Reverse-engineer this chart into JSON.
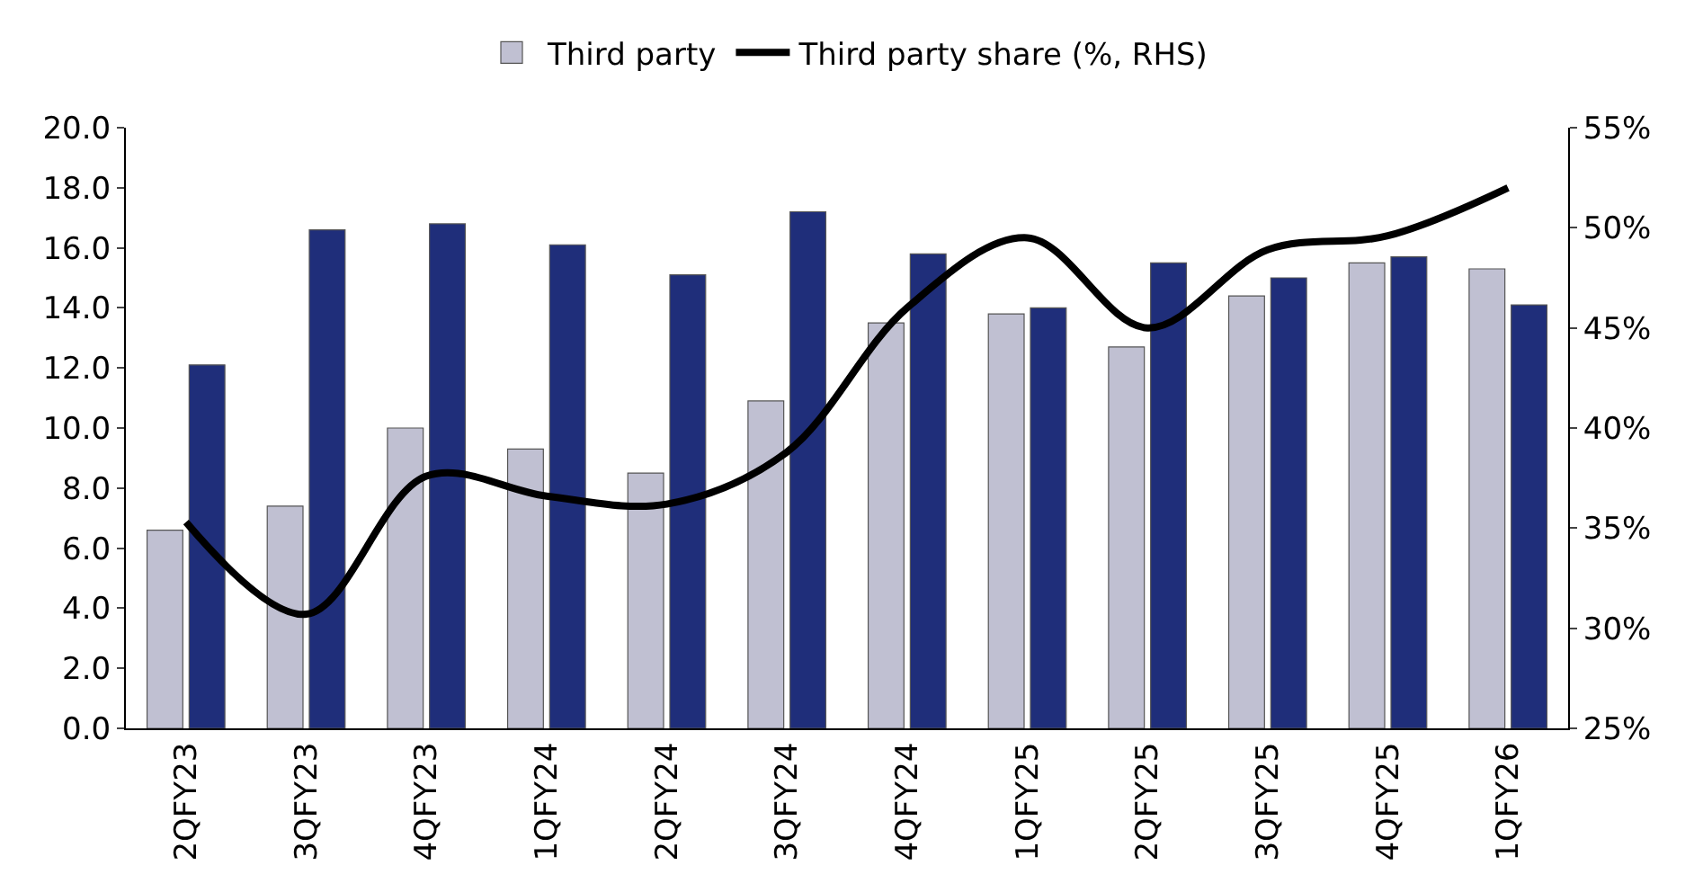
{
  "chart_data": {
    "type": "bar",
    "categories": [
      "2QFY23",
      "3QFY23",
      "4QFY23",
      "1QFY24",
      "2QFY24",
      "3QFY24",
      "4QFY24",
      "1QFY25",
      "2QFY25",
      "3QFY25",
      "4QFY25",
      "1QFY26"
    ],
    "series": [
      {
        "name": "Third party",
        "color": "#c0c0d2",
        "values": [
          6.6,
          7.4,
          10.0,
          9.3,
          8.5,
          10.9,
          13.5,
          13.8,
          12.7,
          14.4,
          15.5,
          15.3
        ]
      },
      {
        "color": "#1f2e7a",
        "values": [
          12.1,
          16.6,
          16.8,
          16.1,
          15.1,
          17.2,
          15.8,
          14.0,
          15.5,
          15.0,
          15.7,
          14.1
        ]
      },
      {
        "name": "Third party share (%, RHS)",
        "type": "line",
        "axis": "y2",
        "color": "#000000",
        "values": [
          35.3,
          30.7,
          37.6,
          36.6,
          36.2,
          38.8,
          46.0,
          49.5,
          45.0,
          48.9,
          49.6,
          52.0
        ]
      }
    ],
    "ylim": [
      0,
      20
    ],
    "yticks": [
      {
        "value": 0,
        "label": "0.0"
      },
      {
        "value": 2,
        "label": "2.0"
      },
      {
        "value": 4,
        "label": "4.0"
      },
      {
        "value": 6,
        "label": "6.0"
      },
      {
        "value": 8,
        "label": "8.0"
      },
      {
        "value": 10,
        "label": "10.0"
      },
      {
        "value": 12,
        "label": "12.0"
      },
      {
        "value": 14,
        "label": "14.0"
      },
      {
        "value": 16,
        "label": "16.0"
      },
      {
        "value": 18,
        "label": "18.0"
      },
      {
        "value": 20,
        "label": "20.0"
      }
    ],
    "y2lim": [
      25,
      55
    ],
    "y2ticks": [
      {
        "value": 25,
        "label": "25%"
      },
      {
        "value": 30,
        "label": "30%"
      },
      {
        "value": 35,
        "label": "35%"
      },
      {
        "value": 40,
        "label": "40%"
      },
      {
        "value": 45,
        "label": "45%"
      },
      {
        "value": 50,
        "label": "50%"
      },
      {
        "value": 55,
        "label": "55%"
      }
    ],
    "grid": false,
    "legend": "top",
    "marker": "none",
    "line_style": "solid"
  }
}
